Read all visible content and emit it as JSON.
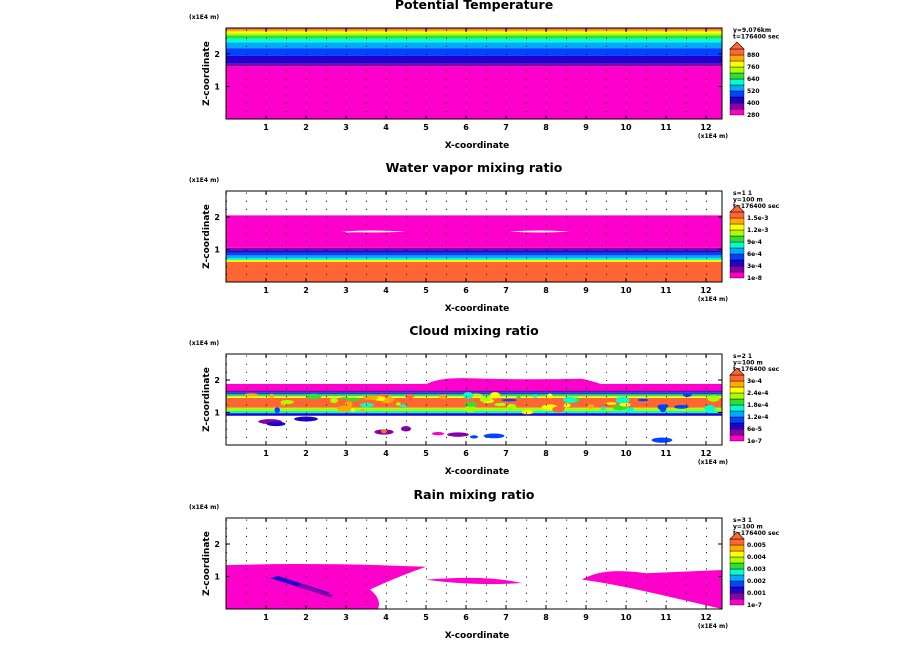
{
  "chart_data": [
    {
      "type": "heatmap",
      "title": "Potential Temperature",
      "xlabel": "X-coordinate",
      "ylabel": "Z-coordinate",
      "x_unit": "(x1E4 m)",
      "z_unit": "(x1E4 m)",
      "xlim": [
        0,
        12.4
      ],
      "zlim": [
        0,
        2.8
      ],
      "xticks": [
        "1",
        "2",
        "3",
        "4",
        "5",
        "6",
        "7",
        "8",
        "9",
        "10",
        "11",
        "12"
      ],
      "zticks": [
        "1",
        "2"
      ],
      "info": [
        "y=9.076km",
        "t=176400 sec"
      ],
      "colorbar": [
        "280",
        "400",
        "520",
        "640",
        "760",
        "880"
      ],
      "colors": [
        "#ff00cc",
        "#8800aa",
        "#2200cc",
        "#0044ff",
        "#00aaff",
        "#00ffcc",
        "#33dd33",
        "#aaff00",
        "#ffff00",
        "#ffaa00",
        "#ff6633"
      ],
      "layers": [
        {
          "z0": 0.0,
          "z1": 1.62,
          "level": 0
        },
        {
          "z0": 1.62,
          "z1": 1.7,
          "level": 1
        },
        {
          "z0": 1.7,
          "z1": 1.94,
          "level": 2
        },
        {
          "z0": 1.94,
          "z1": 2.18,
          "level": 3
        },
        {
          "z0": 2.18,
          "z1": 2.36,
          "level": 4
        },
        {
          "z0": 2.36,
          "z1": 2.48,
          "level": 5
        },
        {
          "z0": 2.48,
          "z1": 2.57,
          "level": 6
        },
        {
          "z0": 2.57,
          "z1": 2.64,
          "level": 7
        },
        {
          "z0": 2.64,
          "z1": 2.7,
          "level": 8
        },
        {
          "z0": 2.7,
          "z1": 2.75,
          "level": 9
        },
        {
          "z0": 2.75,
          "z1": 2.8,
          "level": 10
        }
      ]
    },
    {
      "type": "heatmap",
      "title": "Water vapor mixing ratio",
      "xlabel": "X-coordinate",
      "ylabel": "Z-coordinate",
      "x_unit": "(x1E4 m)",
      "z_unit": "(x1E4 m)",
      "xlim": [
        0,
        12.4
      ],
      "zlim": [
        0,
        2.8
      ],
      "xticks": [
        "1",
        "2",
        "3",
        "4",
        "5",
        "6",
        "7",
        "8",
        "9",
        "10",
        "11",
        "12"
      ],
      "zticks": [
        "1",
        "2"
      ],
      "info": [
        "s=1 1",
        "y=100 m",
        "t=176400 sec"
      ],
      "colorbar": [
        "1e-8",
        "3e-4",
        "6e-4",
        "9e-4",
        "1.2e-3",
        "1.5e-3"
      ],
      "colors": [
        "#ff00cc",
        "#8800aa",
        "#2200cc",
        "#0044ff",
        "#00aaff",
        "#00ffcc",
        "#33dd33",
        "#aaff00",
        "#ffff00",
        "#ffaa00",
        "#ff6633"
      ],
      "layers": [
        {
          "z0": 0.0,
          "z1": 0.62,
          "level": 10
        },
        {
          "z0": 0.62,
          "z1": 0.68,
          "level": 8
        },
        {
          "z0": 0.68,
          "z1": 0.74,
          "level": 5
        },
        {
          "z0": 0.74,
          "z1": 0.82,
          "level": 4
        },
        {
          "z0": 0.82,
          "z1": 0.9,
          "level": 3
        },
        {
          "z0": 0.9,
          "z1": 0.98,
          "level": 2
        },
        {
          "z0": 0.98,
          "z1": 1.05,
          "level": 1
        },
        {
          "z0": 1.05,
          "z1": 2.05,
          "level": 0
        }
      ]
    },
    {
      "type": "heatmap",
      "title": "Cloud mixing ratio",
      "xlabel": "X-coordinate",
      "ylabel": "Z-coordinate",
      "x_unit": "(x1E4 m)",
      "z_unit": "(x1E4 m)",
      "xlim": [
        0,
        12.4
      ],
      "zlim": [
        0,
        2.8
      ],
      "xticks": [
        "1",
        "2",
        "3",
        "4",
        "5",
        "6",
        "7",
        "8",
        "9",
        "10",
        "11",
        "12"
      ],
      "zticks": [
        "1",
        "2"
      ],
      "info": [
        "s=2 1",
        "y=100 m",
        "t=176400 sec"
      ],
      "colorbar": [
        "1e-7",
        "6e-5",
        "1.2e-4",
        "1.8e-4",
        "2.4e-4",
        "3e-4"
      ],
      "colors": [
        "#ff00cc",
        "#8800aa",
        "#2200cc",
        "#0044ff",
        "#00aaff",
        "#00ffcc",
        "#33dd33",
        "#aaff00",
        "#ffff00",
        "#ffaa00",
        "#ff6633"
      ],
      "layers": [
        {
          "z0": 0.9,
          "z1": 0.98,
          "level": 2
        },
        {
          "z0": 0.98,
          "z1": 1.05,
          "level": 5
        },
        {
          "z0": 1.05,
          "z1": 1.15,
          "level": 7
        },
        {
          "z0": 1.15,
          "z1": 1.45,
          "level": 10
        },
        {
          "z0": 1.45,
          "z1": 1.5,
          "level": 8
        },
        {
          "z0": 1.5,
          "z1": 1.56,
          "level": 6
        },
        {
          "z0": 1.56,
          "z1": 1.62,
          "level": 3
        },
        {
          "z0": 1.62,
          "z1": 1.68,
          "level": 1
        },
        {
          "z0": 1.68,
          "z1": 1.88,
          "level": 0
        }
      ]
    },
    {
      "type": "heatmap",
      "title": "Rain mixing ratio",
      "xlabel": "X-coordinate",
      "ylabel": "Z-coordinate",
      "x_unit": "(x1E4 m)",
      "z_unit": "(x1E4 m)",
      "xlim": [
        0,
        12.4
      ],
      "zlim": [
        0,
        2.8
      ],
      "xticks": [
        "1",
        "2",
        "3",
        "4",
        "5",
        "6",
        "7",
        "8",
        "9",
        "10",
        "11",
        "12"
      ],
      "zticks": [
        "1",
        "2"
      ],
      "info": [
        "s=3 1",
        "y=100 m",
        "t=176400 sec"
      ],
      "colorbar": [
        "1e-7",
        "0.001",
        "0.002",
        "0.003",
        "0.004",
        "0.005"
      ],
      "colors": [
        "#ff00cc",
        "#8800aa",
        "#2200cc",
        "#0044ff",
        "#00aaff",
        "#00ffcc",
        "#33dd33",
        "#aaff00",
        "#ffff00",
        "#ffaa00",
        "#ff6633"
      ],
      "layers": []
    }
  ]
}
